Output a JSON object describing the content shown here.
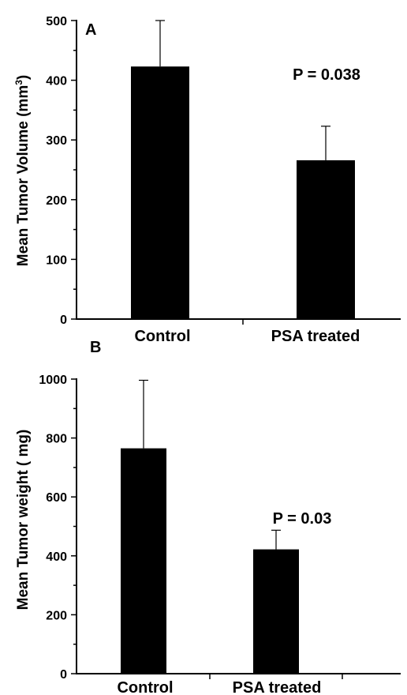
{
  "chart_data": [
    {
      "type": "bar",
      "panel_label": "A",
      "categories": [
        "Control",
        "PSA treated"
      ],
      "values": [
        423,
        266
      ],
      "error_upper": [
        500,
        323
      ],
      "ylabel_main": "Mean Tumor Volume (mm",
      "ylabel_sup": "3",
      "ylabel_end": ")",
      "ylim": [
        0,
        500
      ],
      "yticks": [
        "0",
        "100",
        "200",
        "300",
        "400",
        "500"
      ],
      "ytick_values": [
        0,
        100,
        200,
        300,
        400,
        500
      ],
      "annotation": "P = 0.038",
      "bar_color": "#000000"
    },
    {
      "type": "bar",
      "panel_label": "B",
      "categories": [
        "Control",
        "PSA treated"
      ],
      "values": [
        765,
        422
      ],
      "error_upper": [
        996,
        487
      ],
      "ylabel": "Mean Tumor weight ( mg)",
      "ylim": [
        0,
        1000
      ],
      "yticks": [
        "0",
        "200",
        "400",
        "600",
        "800",
        "1000"
      ],
      "ytick_values": [
        0,
        200,
        400,
        600,
        800,
        1000
      ],
      "annotation": "P = 0.03",
      "bar_color": "#000000"
    }
  ]
}
